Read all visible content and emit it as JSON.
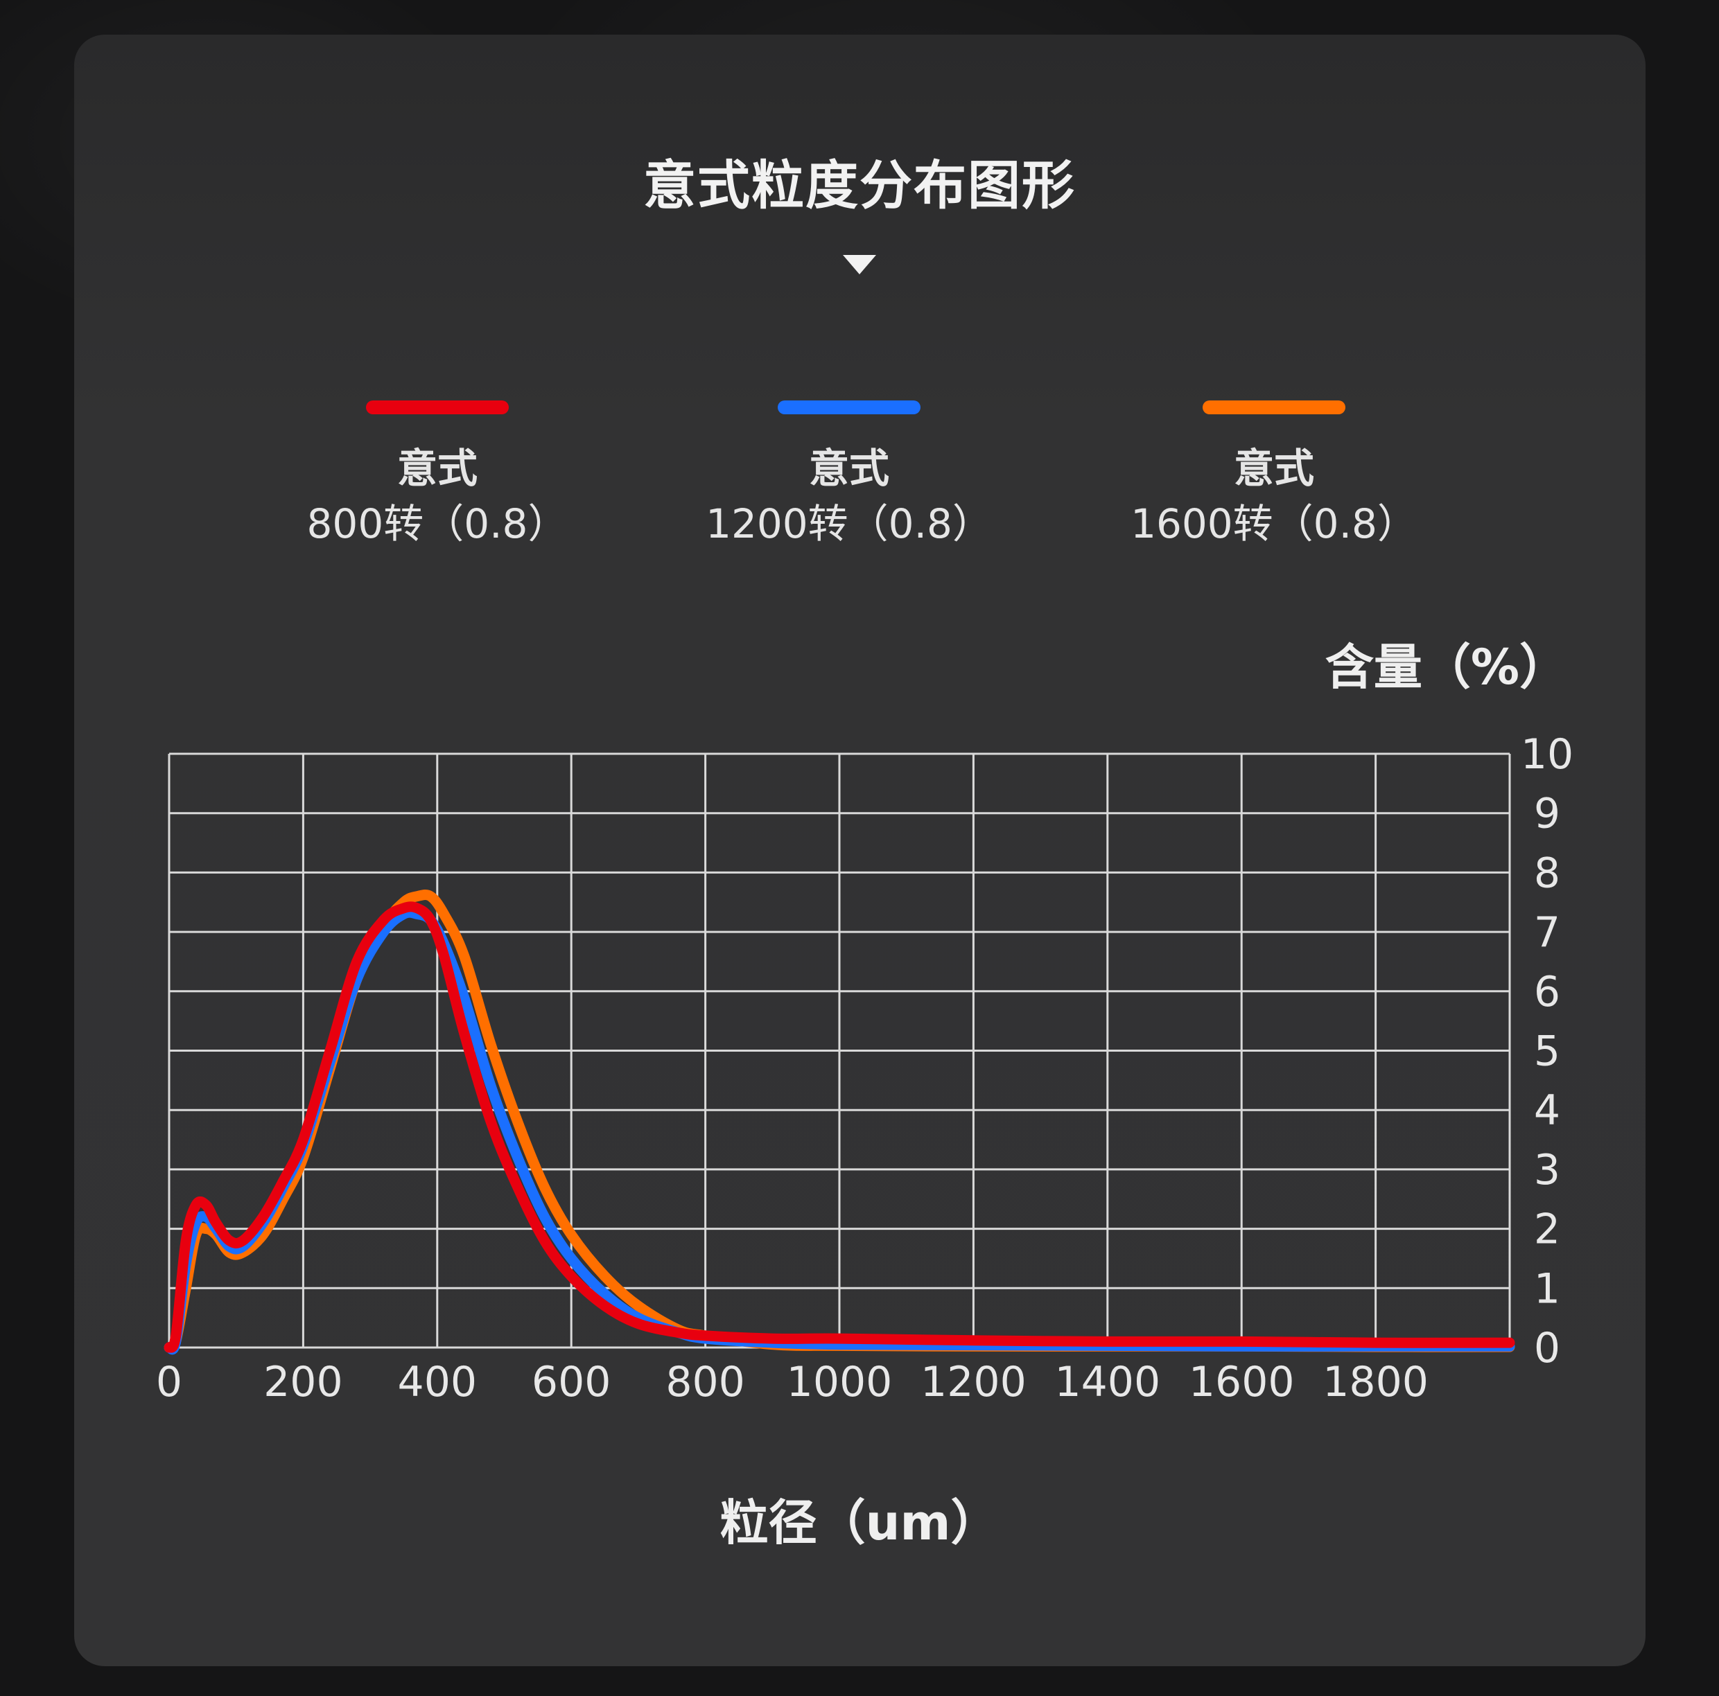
{
  "title": "意式粒度分布图形",
  "legend": [
    {
      "line1": "意式",
      "line2": "800转（0.8）",
      "color": "#e8000f"
    },
    {
      "line1": "意式",
      "line2": "1200转（0.8）",
      "color": "#1a6fff"
    },
    {
      "line1": "意式",
      "line2": "1600转（0.8）",
      "color": "#ff6f00"
    }
  ],
  "chart_data": {
    "type": "line",
    "xlabel": "粒径（um）",
    "ylabel": "含量（%）",
    "xlim": [
      0,
      2000
    ],
    "ylim": [
      0,
      10
    ],
    "x_ticks": [
      "0",
      "200",
      "400",
      "600",
      "800",
      "1000",
      "1200",
      "1400",
      "1600",
      "1800"
    ],
    "y_ticks": [
      "0",
      "1",
      "2",
      "3",
      "4",
      "5",
      "6",
      "7",
      "8",
      "9",
      "10"
    ],
    "grid": true,
    "legend_position": "top",
    "series": [
      {
        "name": "意式 800转（0.8）",
        "color": "#e8000f",
        "x": [
          0,
          10,
          25,
          40,
          55,
          70,
          90,
          110,
          140,
          170,
          200,
          240,
          280,
          320,
          350,
          370,
          390,
          410,
          440,
          480,
          520,
          560,
          600,
          650,
          700,
          760,
          800,
          900,
          1000,
          1200,
          1400,
          1600,
          1800,
          2000
        ],
        "y": [
          0,
          0.2,
          1.8,
          2.4,
          2.4,
          2.1,
          1.8,
          1.8,
          2.2,
          2.8,
          3.5,
          5.0,
          6.5,
          7.2,
          7.4,
          7.4,
          7.2,
          6.6,
          5.3,
          3.8,
          2.7,
          1.8,
          1.2,
          0.7,
          0.4,
          0.25,
          0.2,
          0.15,
          0.15,
          0.12,
          0.1,
          0.1,
          0.08,
          0.08
        ]
      },
      {
        "name": "意式 1200转（0.8）",
        "color": "#1a6fff",
        "x": [
          0,
          10,
          25,
          40,
          55,
          70,
          90,
          110,
          140,
          170,
          200,
          240,
          280,
          320,
          350,
          370,
          390,
          410,
          440,
          480,
          520,
          560,
          600,
          650,
          700,
          760,
          800,
          900,
          1000,
          1200,
          1400,
          1600,
          1800,
          2000
        ],
        "y": [
          0,
          0.1,
          1.4,
          2.1,
          2.2,
          2.0,
          1.7,
          1.7,
          2.1,
          2.7,
          3.4,
          4.8,
          6.2,
          7.0,
          7.3,
          7.3,
          7.2,
          6.8,
          5.9,
          4.4,
          3.2,
          2.2,
          1.5,
          0.9,
          0.5,
          0.25,
          0.15,
          0.08,
          0.05,
          0.04,
          0.03,
          0.02,
          0.02,
          0.02
        ]
      },
      {
        "name": "意式 1600转（0.8）",
        "color": "#ff6f00",
        "x": [
          0,
          10,
          25,
          40,
          55,
          70,
          90,
          110,
          140,
          170,
          200,
          240,
          280,
          320,
          350,
          370,
          390,
          410,
          440,
          480,
          520,
          560,
          600,
          650,
          700,
          760,
          800,
          900,
          1000,
          1200,
          1400,
          1600,
          1800,
          2000
        ],
        "y": [
          0,
          0.1,
          1.0,
          1.9,
          2.0,
          1.9,
          1.6,
          1.6,
          1.9,
          2.5,
          3.2,
          4.7,
          6.2,
          7.1,
          7.5,
          7.6,
          7.6,
          7.3,
          6.6,
          5.1,
          3.8,
          2.7,
          1.9,
          1.2,
          0.7,
          0.3,
          0.2,
          0.05,
          0.03,
          0.02,
          0.02,
          0.02,
          0.01,
          0.01
        ]
      }
    ]
  }
}
